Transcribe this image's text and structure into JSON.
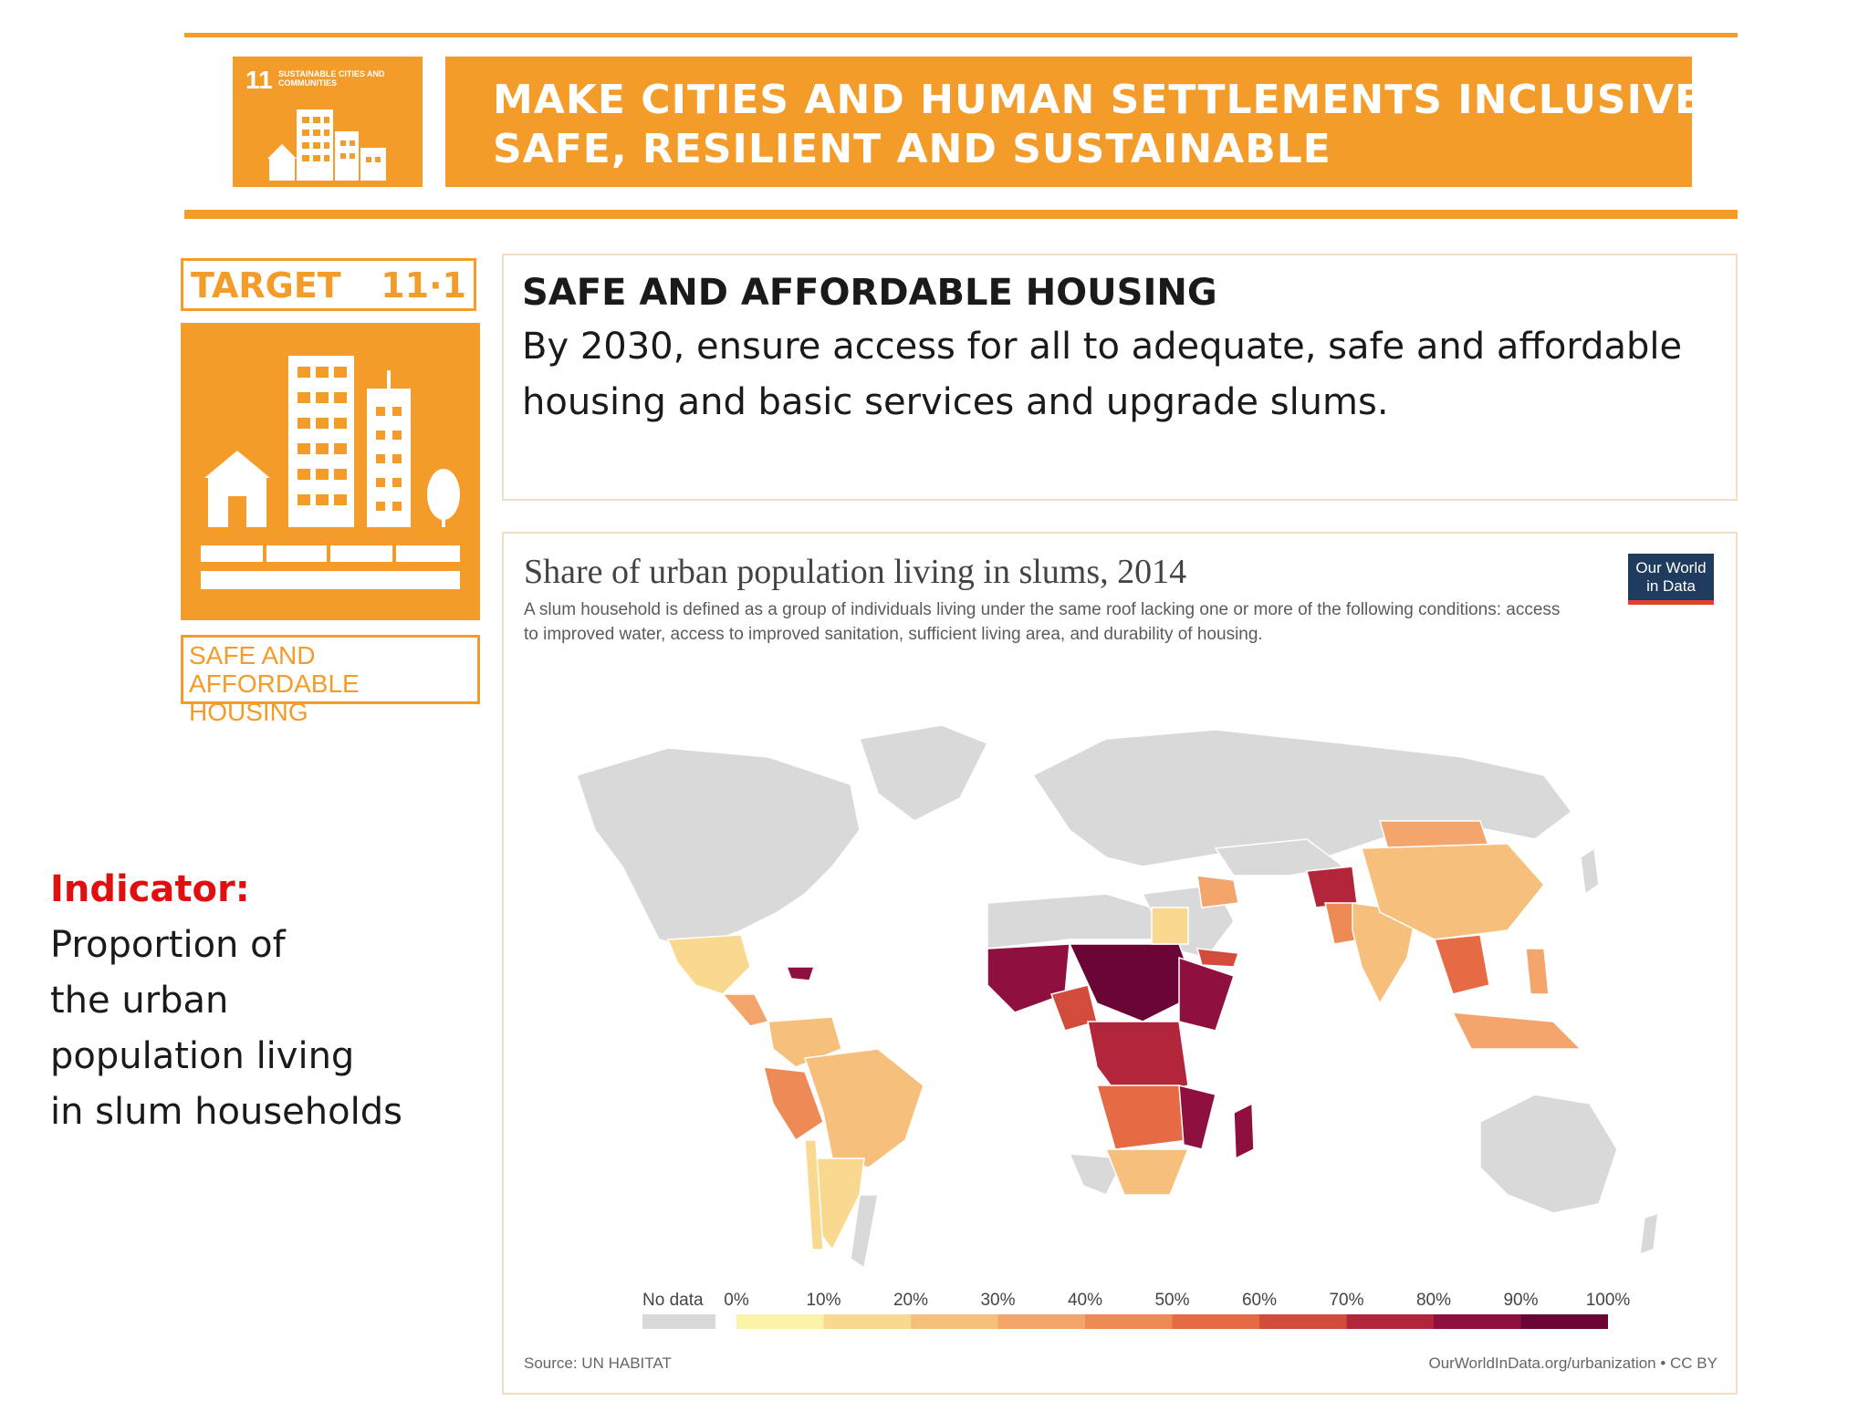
{
  "goal": {
    "number": "11",
    "icon_caption": "SUSTAINABLE CITIES AND COMMUNITIES",
    "title_line1": "MAKE CITIES AND HUMAN SETTLEMENTS INCLUSIVE,",
    "title_line2": "SAFE, RESILIENT AND SUSTAINABLE",
    "color": "#f39c2a"
  },
  "target": {
    "label": "TARGET",
    "number": "11·1",
    "icon_caption_line1": "SAFE AND AFFORDABLE",
    "icon_caption_line2": "HOUSING",
    "title": "SAFE AND AFFORDABLE HOUSING",
    "desc_line1": "By 2030, ensure access for all to adequate, safe and affordable",
    "desc_line2": "housing and basic services and upgrade slums."
  },
  "indicator": {
    "label": "Indicator:",
    "lines": [
      "Proportion of",
      "the urban",
      "population living",
      "in slum households"
    ]
  },
  "map": {
    "title": "Share of urban population living in slums, 2014",
    "subtitle": "A slum household is defined as a group of individuals living under the same roof lacking one or more of the following conditions: access to improved water, access to improved sanitation, sufficient living area, and durability of housing.",
    "logo_line1": "Our World",
    "logo_line2": "in Data",
    "source": "Source: UN HABITAT",
    "credit": "OurWorldInData.org/urbanization • CC BY",
    "legend": {
      "no_data": "No data",
      "ticks": [
        "0%",
        "10%",
        "20%",
        "30%",
        "40%",
        "50%",
        "60%",
        "70%",
        "80%",
        "90%",
        "100%"
      ],
      "colors": [
        "#fbf3a7",
        "#f9d98f",
        "#f6c07c",
        "#f3a56b",
        "#ee8a55",
        "#e66a43",
        "#d34b3a",
        "#b3253a",
        "#8f0f3f",
        "#6b0535"
      ],
      "no_data_color": "#d9d9d9"
    }
  }
}
